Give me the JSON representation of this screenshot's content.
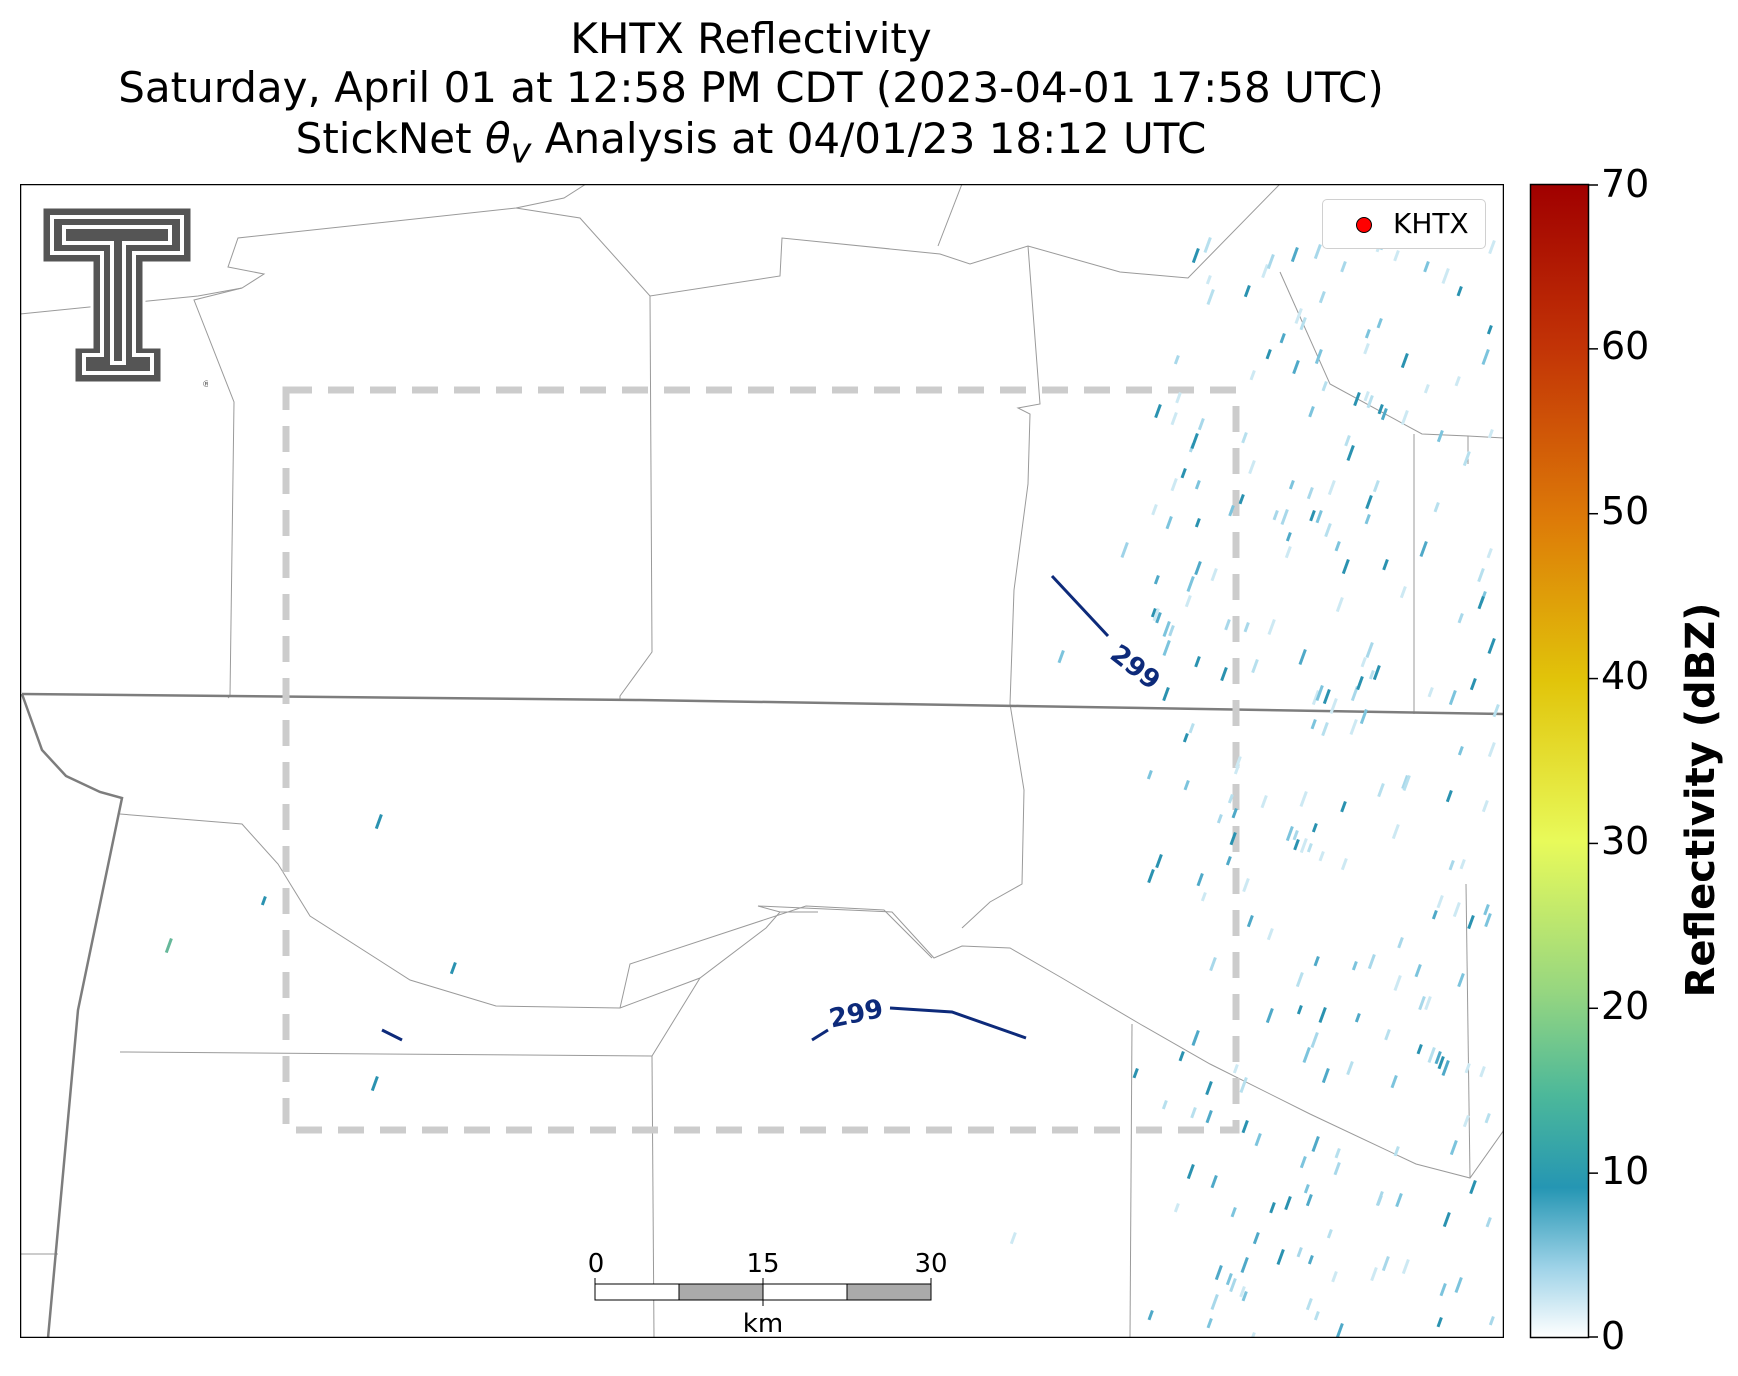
{
  "title": {
    "line1": "KHTX Reflectivity",
    "line2": "Saturday, April 01 at 12:58 PM CDT (2023-04-01 17:58 UTC)",
    "line3_prefix": "StickNet ",
    "line3_symbol": "θ",
    "line3_subscript": "v",
    "line3_suffix": " Analysis at 04/01/23 18:12 UTC"
  },
  "legend": {
    "label": "KHTX",
    "marker_color": "#ff0000"
  },
  "colorbar": {
    "label": "Reflectivity (dBZ)",
    "min": 0,
    "max": 70,
    "ticks": [
      "0",
      "10",
      "20",
      "30",
      "40",
      "50",
      "60",
      "70"
    ]
  },
  "contours": {
    "field": "theta_v",
    "labels": [
      "299",
      "299"
    ],
    "color": "#0d2a7a"
  },
  "scale_bar": {
    "ticks": [
      "0",
      "15",
      "30"
    ],
    "unit": "km"
  },
  "logo": {
    "name": "texas-tech-double-t-logo",
    "color": "#555555"
  },
  "analysis_domain": {
    "style": "dashed",
    "color": "#cccccc"
  }
}
